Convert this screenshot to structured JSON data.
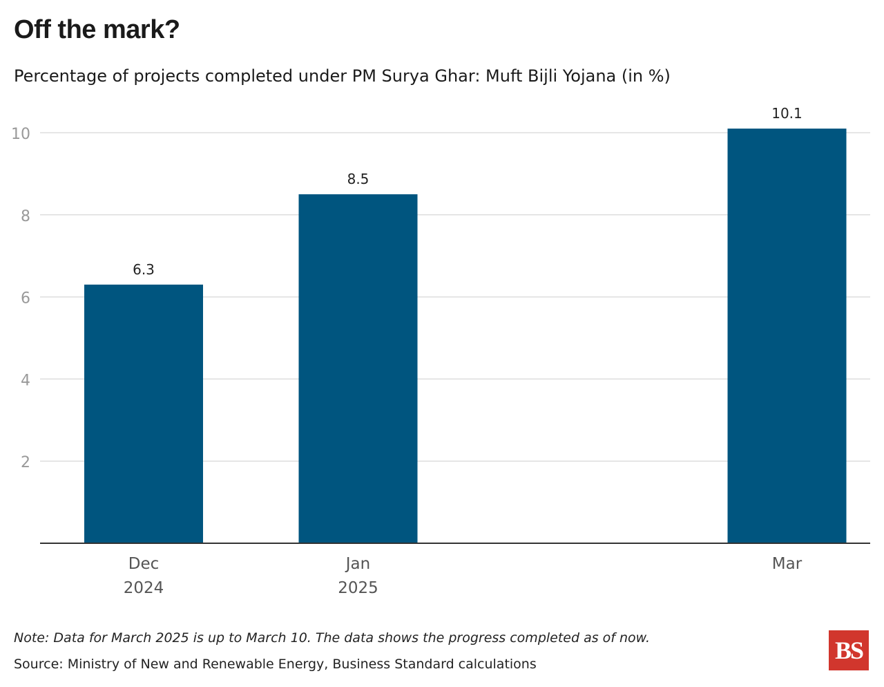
{
  "header": {
    "title": "Off the mark?",
    "subtitle": "Percentage of projects completed under PM Surya Ghar: Muft Bijli Yojana (in %)"
  },
  "footer": {
    "note": "Note: Data for March 2025 is up to March 10. The data shows the progress completed as of now.",
    "source": "Source: Ministry of New and Renewable Energy, Business Standard calculations",
    "logo_text": "BS"
  },
  "colors": {
    "bar": "#00557f",
    "grid": "#dddddd",
    "axis": "#333333",
    "tick_label": "#999999",
    "category_label": "#555555",
    "logo": "#d1362d"
  },
  "chart_data": {
    "type": "bar",
    "title": "Off the mark?",
    "subtitle": "Percentage of projects completed under PM Surya Ghar: Muft Bijli Yojana (in %)",
    "x": [
      "2024-12",
      "2025-01",
      "2025-03"
    ],
    "categories": [
      [
        "Dec",
        "2024"
      ],
      [
        "Jan",
        "2025"
      ],
      [
        "Mar"
      ]
    ],
    "values": [
      6.3,
      8.5,
      10.1
    ],
    "data_labels": [
      "6.3",
      "8.5",
      "10.1"
    ],
    "ylim": [
      0,
      10.5
    ],
    "yticks": [
      2,
      4,
      6,
      8,
      10
    ],
    "xlabel": "",
    "ylabel": "",
    "grid": true,
    "legend": "none"
  }
}
